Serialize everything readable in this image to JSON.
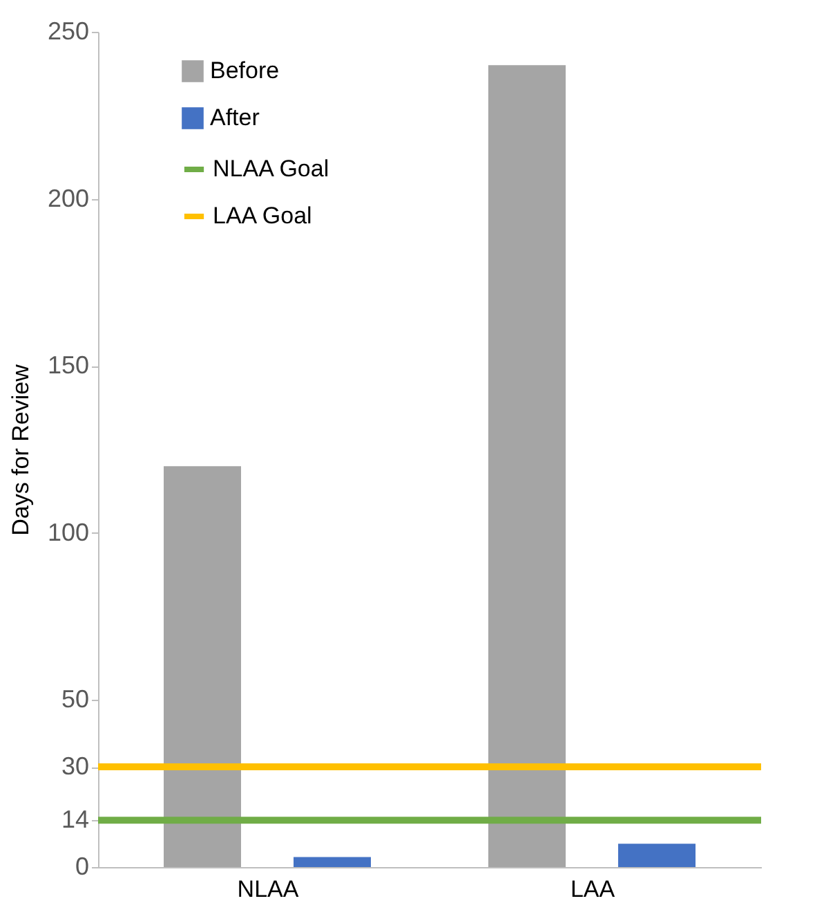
{
  "chart_data": {
    "type": "bar",
    "ylabel": "Days for Review",
    "categories": [
      "NLAA",
      "LAA"
    ],
    "series": [
      {
        "name": "Before",
        "color": "#a5a5a5",
        "values": [
          120,
          240
        ]
      },
      {
        "name": "After",
        "color": "#4472c4",
        "values": [
          3,
          7
        ]
      }
    ],
    "ref_lines": [
      {
        "axis": "y",
        "value": 14,
        "label": "NLAA Goal",
        "color": "#70ad47"
      },
      {
        "axis": "y",
        "value": 30,
        "label": "LAA Goal",
        "color": "#ffc000"
      }
    ],
    "ylim": [
      0,
      250
    ],
    "yticks": [
      0,
      14,
      30,
      50,
      100,
      150,
      200,
      250
    ],
    "grid": false,
    "legend": "top left"
  }
}
